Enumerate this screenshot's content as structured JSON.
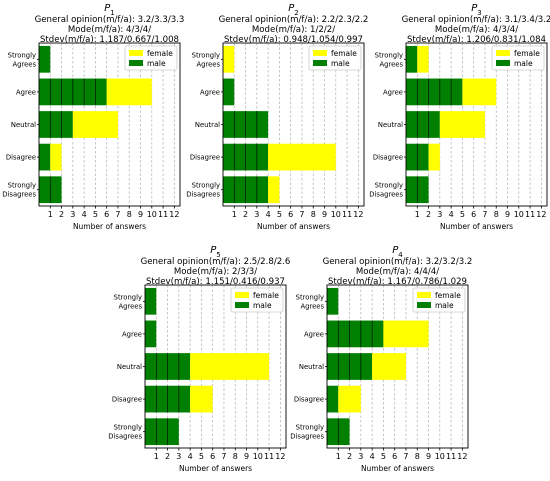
{
  "colors": {
    "female": "#ffff00",
    "male": "#007f00",
    "grid": "#b0b0b0",
    "bar_edge": "#000000"
  },
  "chart_data": [
    {
      "type": "bar",
      "orientation": "horizontal",
      "stacked": true,
      "title": "P1",
      "title_main": "P",
      "title_sub": "1",
      "subtitle_lines": [
        "General opinion(m/f/a): 3.2/3.3/3.3",
        "Mode(m/f/a): 4/3/4/",
        "Stdev(m/f/a): 1.187/0.667/1.008"
      ],
      "categories": [
        "Strongly\nAgrees",
        "Agree",
        "Neutral",
        "Disagree",
        "Strongly\nDisagrees"
      ],
      "category_lines": [
        [
          "Strongly",
          "Agrees"
        ],
        [
          "Agree"
        ],
        [
          "Neutral"
        ],
        [
          "Disagree"
        ],
        [
          "Strongly",
          "Disagrees"
        ]
      ],
      "series": [
        {
          "name": "male",
          "values": [
            1,
            6,
            3,
            1,
            2
          ]
        },
        {
          "name": "female",
          "values": [
            0,
            4,
            4,
            1,
            0
          ]
        }
      ],
      "legend_order": [
        "female",
        "male"
      ],
      "xlabel": "Number of answers",
      "xticks": [
        "1",
        "2",
        "3",
        "4",
        "5",
        "6",
        "7",
        "8",
        "9",
        "10",
        "11",
        "12"
      ],
      "xlim": [
        0,
        12.5
      ],
      "grid": "x",
      "legend": "upper right"
    },
    {
      "type": "bar",
      "orientation": "horizontal",
      "stacked": true,
      "title": "P2",
      "title_main": "P",
      "title_sub": "2",
      "subtitle_lines": [
        "General opinion(m/f/a): 2.2/2.3/2.2",
        "Mode(m/f/a): 1/2/2/",
        "Stdev(m/f/a): 0.948/1.054/0.997"
      ],
      "categories": [
        "Strongly\nAgrees",
        "Agree",
        "Neutral",
        "Disagree",
        "Strongly\nDisagrees"
      ],
      "category_lines": [
        [
          "Strongly",
          "Agrees"
        ],
        [
          "Agree"
        ],
        [
          "Neutral"
        ],
        [
          "Disagree"
        ],
        [
          "Strongly",
          "Disagrees"
        ]
      ],
      "series": [
        {
          "name": "male",
          "values": [
            0,
            1,
            4,
            4,
            4
          ]
        },
        {
          "name": "female",
          "values": [
            1,
            0,
            0,
            6,
            1
          ]
        }
      ],
      "legend_order": [
        "female",
        "male"
      ],
      "xlabel": "Number of answers",
      "xticks": [
        "1",
        "2",
        "3",
        "4",
        "5",
        "6",
        "7",
        "8",
        "9",
        "10",
        "11",
        "12"
      ],
      "xlim": [
        0,
        12.5
      ],
      "grid": "x",
      "legend": "upper right"
    },
    {
      "type": "bar",
      "orientation": "horizontal",
      "stacked": true,
      "title": "P3",
      "title_main": "P",
      "title_sub": "3",
      "subtitle_lines": [
        "General opinion(m/f/a): 3.1/3.4/3.2",
        "Mode(m/f/a): 4/3/4/",
        "Stdev(m/f/a): 1.206/0.831/1.084"
      ],
      "categories": [
        "Strongly\nAgrees",
        "Agree",
        "Neutral",
        "Disagree",
        "Strongly\nDisagrees"
      ],
      "category_lines": [
        [
          "Strongly",
          "Agrees"
        ],
        [
          "Agree"
        ],
        [
          "Neutral"
        ],
        [
          "Disagree"
        ],
        [
          "Strongly",
          "Disagrees"
        ]
      ],
      "series": [
        {
          "name": "male",
          "values": [
            1,
            5,
            3,
            2,
            2
          ]
        },
        {
          "name": "female",
          "values": [
            1,
            3,
            4,
            1,
            0
          ]
        }
      ],
      "legend_order": [
        "female",
        "male"
      ],
      "xlabel": "Number of answers",
      "xticks": [
        "1",
        "2",
        "3",
        "4",
        "5",
        "6",
        "7",
        "8",
        "9",
        "10",
        "11",
        "12"
      ],
      "xlim": [
        0,
        12.5
      ],
      "grid": "x",
      "legend": "upper right"
    },
    {
      "type": "bar",
      "orientation": "horizontal",
      "stacked": true,
      "title": "P5",
      "title_main": "P",
      "title_sub": "5",
      "subtitle_lines": [
        "General opinion(m/f/a): 2.5/2.8/2.6",
        "Mode(m/f/a): 2/3/3/",
        "Stdev(m/f/a): 1.151/0.416/0.937"
      ],
      "categories": [
        "Strongly\nAgrees",
        "Agree",
        "Neutral",
        "Disagree",
        "Strongly\nDisagrees"
      ],
      "category_lines": [
        [
          "Strongly",
          "Agrees"
        ],
        [
          "Agree"
        ],
        [
          "Neutral"
        ],
        [
          "Disagree"
        ],
        [
          "Strongly",
          "Disagrees"
        ]
      ],
      "series": [
        {
          "name": "male",
          "values": [
            1,
            1,
            4,
            4,
            3
          ]
        },
        {
          "name": "female",
          "values": [
            0,
            0,
            7,
            2,
            0
          ]
        }
      ],
      "legend_order": [
        "female",
        "male"
      ],
      "xlabel": "Number of answers",
      "xticks": [
        "1",
        "2",
        "3",
        "4",
        "5",
        "6",
        "7",
        "8",
        "9",
        "10",
        "11",
        "12"
      ],
      "xlim": [
        0,
        12.5
      ],
      "grid": "x",
      "legend": "upper right"
    },
    {
      "type": "bar",
      "orientation": "horizontal",
      "stacked": true,
      "title": "P4",
      "title_main": "P",
      "title_sub": "4",
      "subtitle_lines": [
        "General opinion(m/f/a): 3.2/3.2/3.2",
        "Mode(m/f/a): 4/4/4/",
        "Stdev(m/f/a): 1.167/0.786/1.029"
      ],
      "categories": [
        "Strongly\nAgrees",
        "Agree",
        "Neutral",
        "Disagree",
        "Strongly\nDisagrees"
      ],
      "category_lines": [
        [
          "Strongly",
          "Agrees"
        ],
        [
          "Agree"
        ],
        [
          "Neutral"
        ],
        [
          "Disagree"
        ],
        [
          "Strongly",
          "Disagrees"
        ]
      ],
      "series": [
        {
          "name": "male",
          "values": [
            1,
            5,
            4,
            1,
            2
          ]
        },
        {
          "name": "female",
          "values": [
            0,
            4,
            3,
            2,
            0
          ]
        }
      ],
      "legend_order": [
        "female",
        "male"
      ],
      "xlabel": "Number of answers",
      "xticks": [
        "1",
        "2",
        "3",
        "4",
        "5",
        "6",
        "7",
        "8",
        "9",
        "10",
        "11",
        "12"
      ],
      "xlim": [
        0,
        12.5
      ],
      "grid": "x",
      "legend": "upper right"
    }
  ]
}
